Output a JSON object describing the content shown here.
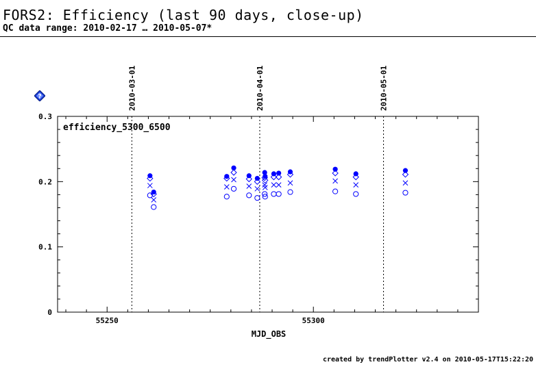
{
  "header": {
    "title": "FORS2: Efficiency (last 90 days, close-up)",
    "subtitle": "QC data range: 2010-02-17 … 2010-05-07*"
  },
  "footer": {
    "text": "created by trendPlotter v2.4 on 2010-05-17T15:22:20"
  },
  "icons": {
    "help": "help-diamond-icon"
  },
  "colors": {
    "series": "#0000ff",
    "axes": "#000000"
  },
  "chart_data": {
    "type": "scatter",
    "title": "efficiency_5300_6500",
    "xlabel": "MJD_OBS",
    "ylabel": "",
    "xlim": [
      55238,
      55340
    ],
    "ylim": [
      0,
      0.3
    ],
    "x_ticks": [
      55250,
      55300
    ],
    "y_ticks": [
      0,
      0.1,
      0.2,
      0.3
    ],
    "date_markers": [
      {
        "x": 55256.0,
        "label": "2010-03-01"
      },
      {
        "x": 55287.0,
        "label": "2010-04-01"
      },
      {
        "x": 55317.0,
        "label": "2010-05-01"
      }
    ],
    "grid": false,
    "series": [
      {
        "marker": "filled-circle",
        "points": [
          [
            55260.4,
            0.209
          ],
          [
            55261.3,
            0.184
          ],
          [
            55279.0,
            0.208
          ],
          [
            55280.7,
            0.221
          ],
          [
            55284.4,
            0.209
          ],
          [
            55286.4,
            0.205
          ],
          [
            55288.2,
            0.214
          ],
          [
            55288.3,
            0.208
          ],
          [
            55290.4,
            0.212
          ],
          [
            55291.6,
            0.213
          ],
          [
            55294.4,
            0.215
          ],
          [
            55305.3,
            0.219
          ],
          [
            55310.3,
            0.212
          ],
          [
            55322.3,
            0.217
          ]
        ]
      },
      {
        "marker": "diamond",
        "points": [
          [
            55260.4,
            0.205
          ],
          [
            55261.3,
            0.181
          ],
          [
            55279.0,
            0.205
          ],
          [
            55280.7,
            0.214
          ],
          [
            55284.4,
            0.204
          ],
          [
            55286.4,
            0.2
          ],
          [
            55288.2,
            0.206
          ],
          [
            55288.3,
            0.202
          ],
          [
            55290.4,
            0.207
          ],
          [
            55291.6,
            0.207
          ],
          [
            55294.4,
            0.211
          ],
          [
            55305.3,
            0.213
          ],
          [
            55310.3,
            0.207
          ],
          [
            55322.3,
            0.211
          ]
        ]
      },
      {
        "marker": "cross",
        "points": [
          [
            55260.4,
            0.194
          ],
          [
            55261.3,
            0.172
          ],
          [
            55279.0,
            0.192
          ],
          [
            55280.7,
            0.203
          ],
          [
            55284.4,
            0.193
          ],
          [
            55286.4,
            0.189
          ],
          [
            55288.2,
            0.195
          ],
          [
            55288.3,
            0.191
          ],
          [
            55290.4,
            0.195
          ],
          [
            55291.6,
            0.195
          ],
          [
            55294.4,
            0.198
          ],
          [
            55305.3,
            0.201
          ],
          [
            55310.3,
            0.195
          ],
          [
            55322.3,
            0.198
          ]
        ]
      },
      {
        "marker": "open-circle",
        "points": [
          [
            55260.4,
            0.179
          ],
          [
            55261.3,
            0.161
          ],
          [
            55279.0,
            0.177
          ],
          [
            55280.7,
            0.189
          ],
          [
            55284.4,
            0.179
          ],
          [
            55286.4,
            0.175
          ],
          [
            55288.2,
            0.181
          ],
          [
            55288.3,
            0.177
          ],
          [
            55290.4,
            0.181
          ],
          [
            55291.6,
            0.181
          ],
          [
            55294.4,
            0.184
          ],
          [
            55305.3,
            0.185
          ],
          [
            55310.3,
            0.181
          ],
          [
            55322.3,
            0.183
          ]
        ]
      }
    ]
  }
}
